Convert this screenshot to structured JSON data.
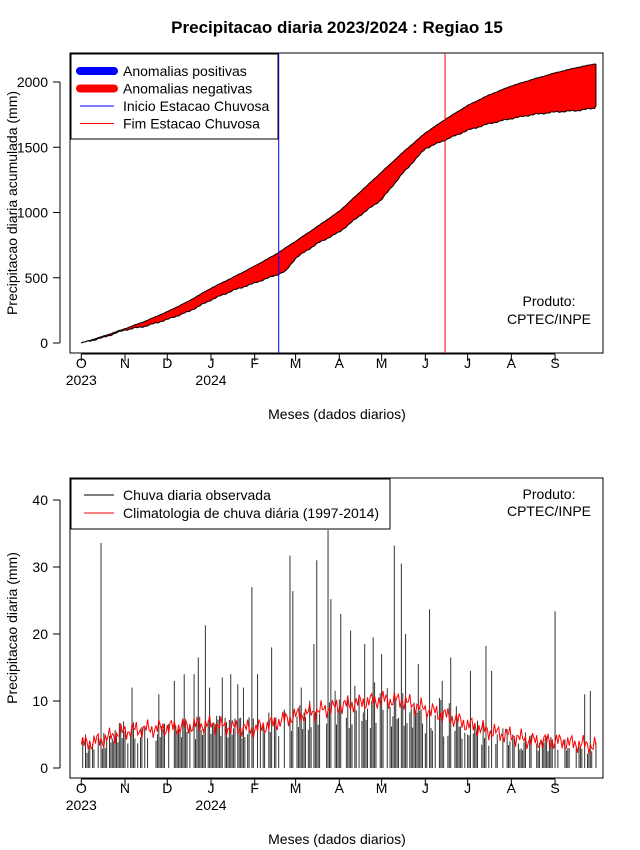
{
  "chart_data": [
    {
      "type": "area",
      "title": "Precipitacao diaria 2023/2024 : Regiao 15",
      "xlabel": "Meses (dados diarios)",
      "ylabel": "Precipitacao diaria acumulada (mm)",
      "ylim": [
        0,
        2200
      ],
      "yticks": [
        0,
        500,
        1000,
        1500,
        2000
      ],
      "xlim_days": [
        -8,
        370
      ],
      "month_ticks": [
        {
          "label": "O",
          "day": 0
        },
        {
          "label": "N",
          "day": 31
        },
        {
          "label": "D",
          "day": 61
        },
        {
          "label": "J",
          "day": 92
        },
        {
          "label": "F",
          "day": 123
        },
        {
          "label": "M",
          "day": 152
        },
        {
          "label": "A",
          "day": 183
        },
        {
          "label": "M",
          "day": 213
        },
        {
          "label": "J",
          "day": 244
        },
        {
          "label": "J",
          "day": 274
        },
        {
          "label": "A",
          "day": 305
        },
        {
          "label": "S",
          "day": 336
        }
      ],
      "year_labels": [
        {
          "label": "2023",
          "day": 0
        },
        {
          "label": "2024",
          "day": 92
        }
      ],
      "legend": [
        {
          "label": "Anomalias positivas",
          "color": "#0000ff",
          "style": "thick"
        },
        {
          "label": "Anomalias negativas",
          "color": "#ff0000",
          "style": "thick"
        },
        {
          "label": "Inicio Estacao Chuvosa",
          "color": "#0000ff",
          "style": "thin"
        },
        {
          "label": "Fim Estacao Chuvosa",
          "color": "#ff0000",
          "style": "thin"
        }
      ],
      "annotation": [
        "Produto:",
        "CPTEC/INPE"
      ],
      "series": [
        {
          "name": "Climatologia",
          "day": [
            0,
            15,
            31,
            46,
            61,
            76,
            92,
            107,
            123,
            138,
            152,
            167,
            183,
            198,
            213,
            228,
            244,
            259,
            274,
            289,
            305,
            320,
            336,
            351,
            365
          ],
          "values": [
            0,
            50,
            110,
            170,
            240,
            320,
            420,
            500,
            590,
            680,
            780,
            890,
            1010,
            1160,
            1310,
            1460,
            1610,
            1720,
            1820,
            1900,
            1970,
            2020,
            2070,
            2110,
            2140
          ]
        },
        {
          "name": "Observada",
          "day": [
            0,
            15,
            31,
            46,
            61,
            76,
            92,
            107,
            123,
            138,
            145,
            152,
            167,
            183,
            198,
            213,
            228,
            244,
            259,
            274,
            289,
            305,
            320,
            336,
            351,
            364,
            365
          ],
          "values": [
            0,
            40,
            100,
            130,
            180,
            240,
            330,
            400,
            460,
            520,
            550,
            650,
            760,
            850,
            980,
            1100,
            1300,
            1490,
            1560,
            1630,
            1680,
            1720,
            1750,
            1770,
            1780,
            1800,
            1820
          ]
        }
      ],
      "vlines": [
        {
          "name": "Inicio Estacao Chuvosa",
          "day": 140,
          "color": "#0000ff"
        },
        {
          "name": "Fim Estacao Chuvosa",
          "day": 258,
          "color": "#ff0000"
        }
      ]
    },
    {
      "type": "bar",
      "xlabel": "Meses (dados diarios)",
      "ylabel": "Precipitacao diaria (mm)",
      "ylim": [
        0,
        43
      ],
      "yticks": [
        0,
        10,
        20,
        30,
        40
      ],
      "xlim_days": [
        -8,
        370
      ],
      "month_ticks": [
        {
          "label": "O",
          "day": 0
        },
        {
          "label": "N",
          "day": 31
        },
        {
          "label": "D",
          "day": 61
        },
        {
          "label": "J",
          "day": 92
        },
        {
          "label": "F",
          "day": 123
        },
        {
          "label": "M",
          "day": 152
        },
        {
          "label": "A",
          "day": 183
        },
        {
          "label": "M",
          "day": 213
        },
        {
          "label": "J",
          "day": 244
        },
        {
          "label": "J",
          "day": 274
        },
        {
          "label": "A",
          "day": 305
        },
        {
          "label": "S",
          "day": 336
        }
      ],
      "year_labels": [
        {
          "label": "2023",
          "day": 0
        },
        {
          "label": "2024",
          "day": 92
        }
      ],
      "legend": [
        {
          "label": "Chuva diaria observada",
          "color": "#000000",
          "style": "thin"
        },
        {
          "label": "Climatologia de chuva diária (1997-2014)",
          "color": "#ff0000",
          "style": "thin"
        }
      ],
      "annotation": [
        "Produto:",
        "CPTEC/INPE"
      ],
      "observed_peaks": {
        "day": [
          3,
          14,
          36,
          55,
          66,
          73,
          80,
          83,
          88,
          91,
          100,
          106,
          111,
          115,
          121,
          125,
          135,
          148,
          150,
          156,
          165,
          167,
          175,
          177,
          184,
          191,
          201,
          207,
          213,
          222,
          227,
          230,
          239,
          247,
          256,
          262,
          276,
          287,
          291,
          336,
          357,
          361
        ],
        "values": [
          5,
          33.6,
          12,
          11,
          13,
          14,
          14,
          16.5,
          21.3,
          12,
          13.5,
          14,
          12.5,
          12,
          27,
          14,
          18,
          31.7,
          26.4,
          12,
          18.5,
          31,
          35.5,
          25.2,
          23,
          20.5,
          18.5,
          19.5,
          17,
          33.2,
          30.5,
          20,
          15.5,
          23.7,
          13,
          16.5,
          14.5,
          18.2,
          14.5,
          23.4,
          11,
          11.5
        ]
      },
      "climatology": {
        "day": [
          0,
          15,
          31,
          46,
          61,
          76,
          92,
          107,
          123,
          138,
          152,
          167,
          183,
          198,
          213,
          228,
          244,
          259,
          274,
          289,
          305,
          320,
          336,
          351,
          365
        ],
        "values": [
          3.5,
          4.2,
          5.5,
          5.8,
          6.0,
          6.3,
          6.5,
          6.0,
          5.8,
          6.8,
          7.8,
          8.5,
          9.2,
          9.8,
          10.2,
          10.0,
          8.8,
          7.8,
          6.5,
          5.5,
          4.8,
          4.0,
          4.0,
          3.6,
          3.3
        ]
      }
    }
  ]
}
